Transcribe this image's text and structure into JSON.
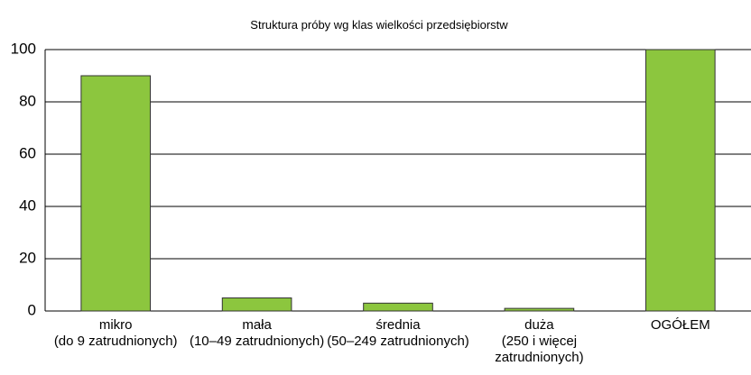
{
  "chart_data": {
    "type": "bar",
    "title": "Struktura próby wg klas wielkości przedsiębiorstw",
    "categories": [
      "mikro\n(do 9 zatrudnionych)",
      "mała\n(10–49 zatrudnionych)",
      "średnia\n(50–249 zatrudnionych)",
      "duża\n(250 i więcej\nzatrudnionych)",
      "OGÓŁEM"
    ],
    "values": [
      90,
      5,
      3,
      1,
      100
    ],
    "color": "#8cc63e",
    "ylim": [
      0,
      100
    ],
    "yticks": [
      0,
      20,
      40,
      60,
      80,
      100
    ],
    "grid": true
  }
}
